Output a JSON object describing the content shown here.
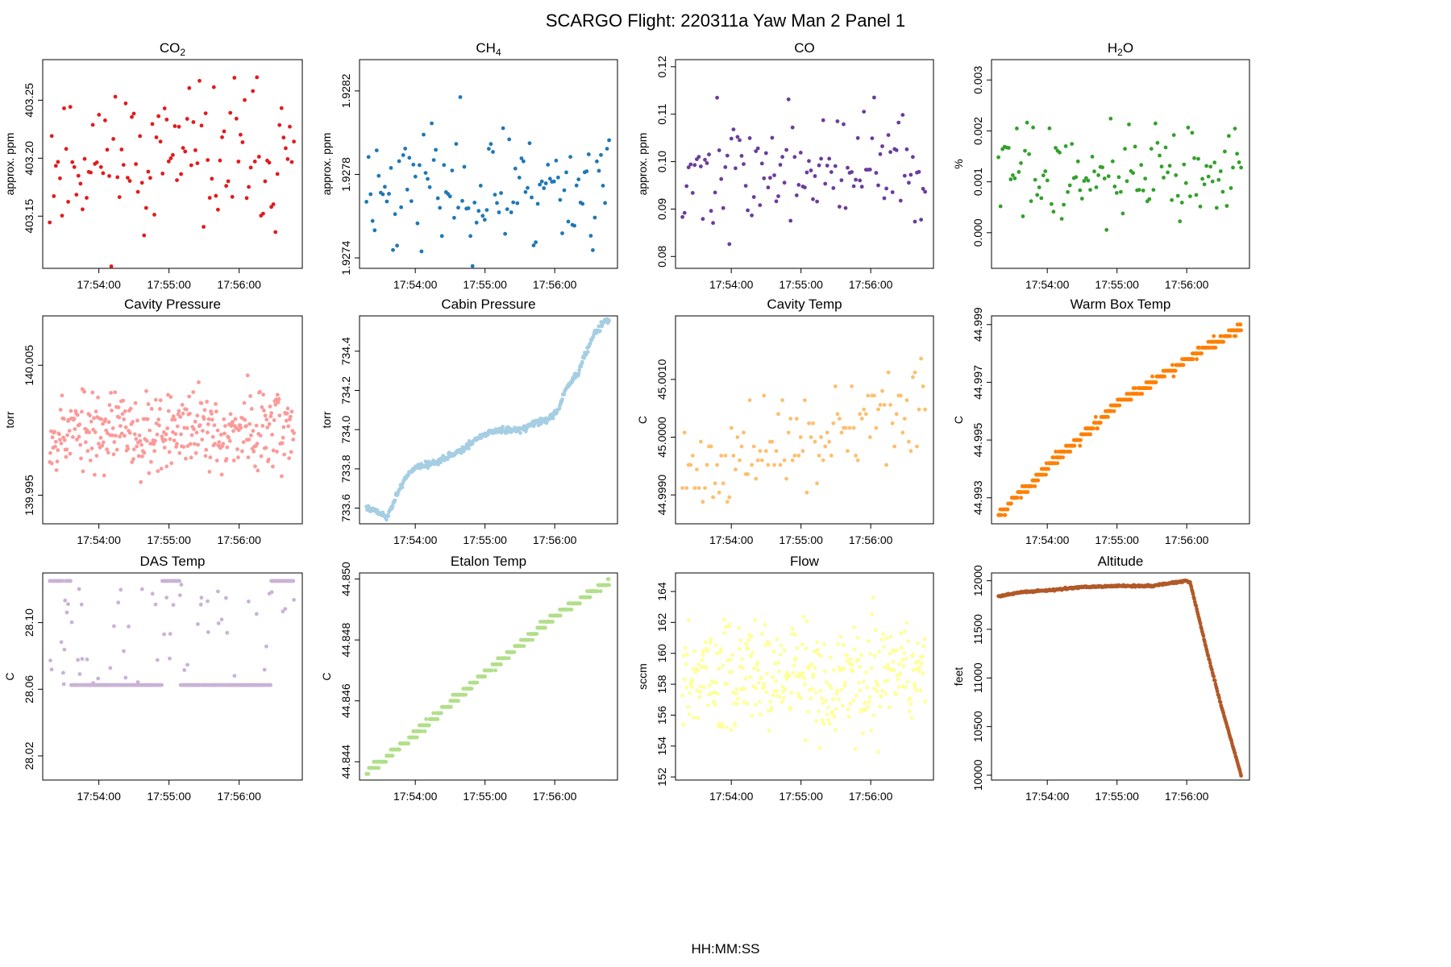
{
  "figure": {
    "title": "SCARGO Flight: 220311a  Yaw Man 2 Panel 1",
    "xlabel": "HH:MM:SS"
  },
  "chart_data": [
    {
      "type": "scatter",
      "title_base": "CO",
      "title_sub": "2",
      "ylabel": "approx. ppm",
      "color": "#e31a1c",
      "ylim": [
        403.105,
        403.285
      ],
      "yticks": [
        "403.15",
        "403.20",
        "403.25"
      ],
      "xlim": [
        53.2,
        56.9
      ],
      "xticks": [
        "17:54:00",
        "17:55:00",
        "17:56:00"
      ],
      "series": {
        "name": "CO2",
        "pattern": "noise",
        "n": 120,
        "mean": 403.2,
        "spread": 0.055,
        "seed": 11
      }
    },
    {
      "type": "scatter",
      "title_base": "CH",
      "title_sub": "4",
      "ylabel": "approx. ppm",
      "color": "#1f78b4",
      "ylim": [
        1.92735,
        1.92835
      ],
      "yticks": [
        "1.9274",
        "1.9278",
        "1.9282"
      ],
      "xlim": [
        53.2,
        56.9
      ],
      "xticks": [
        "17:54:00",
        "17:55:00",
        "17:56:00"
      ],
      "series": {
        "name": "CH4",
        "pattern": "noise",
        "n": 120,
        "mean": 1.92775,
        "spread": 0.00028,
        "seed": 23
      }
    },
    {
      "type": "scatter",
      "title_base": "CO",
      "title_sub": "",
      "ylabel": "approx. ppm",
      "color": "#6a3d9a",
      "ylim": [
        0.0775,
        0.1215
      ],
      "yticks": [
        "0.08",
        "0.09",
        "0.10",
        "0.11",
        "0.12"
      ],
      "xlim": [
        53.2,
        56.9
      ],
      "xticks": [
        "17:54:00",
        "17:55:00",
        "17:56:00"
      ],
      "series": {
        "name": "CO",
        "pattern": "noise",
        "n": 120,
        "mean": 0.098,
        "spread": 0.011,
        "seed": 37
      }
    },
    {
      "type": "scatter",
      "title_base": "H",
      "title_sub": "2",
      "title_tail": "O",
      "ylabel": "%",
      "color": "#33a02c",
      "ylim": [
        -0.0007,
        0.0034
      ],
      "yticks": [
        "0.000",
        "0.001",
        "0.002",
        "0.003"
      ],
      "xlim": [
        53.2,
        56.9
      ],
      "xticks": [
        "17:54:00",
        "17:55:00",
        "17:56:00"
      ],
      "series": {
        "name": "H2O",
        "pattern": "noise",
        "n": 120,
        "mean": 0.0012,
        "spread": 0.0009,
        "seed": 41
      }
    },
    {
      "type": "scatter",
      "title_base": "Cavity Pressure",
      "title_sub": "",
      "ylabel": "torr",
      "color": "#fb9a99",
      "ylim": [
        139.9928,
        140.0088
      ],
      "yticks": [
        "139.995",
        "140.005"
      ],
      "xlim": [
        53.2,
        56.9
      ],
      "xticks": [
        "17:54:00",
        "17:55:00",
        "17:56:00"
      ],
      "series": {
        "name": "Cavity Pressure",
        "pattern": "noise",
        "n": 360,
        "mean": 140.0,
        "spread": 0.0028,
        "seed": 53
      }
    },
    {
      "type": "scatter",
      "title_base": "Cabin Pressure",
      "title_sub": "",
      "ylabel": "torr",
      "color": "#a6cee3",
      "ylim": [
        733.52,
        734.58
      ],
      "yticks": [
        "733.6",
        "733.8",
        "734.0",
        "734.2",
        "734.4"
      ],
      "xlim": [
        53.2,
        56.9
      ],
      "xticks": [
        "17:54:00",
        "17:55:00",
        "17:56:00"
      ],
      "series": {
        "name": "Cabin Pressure",
        "pattern": "path",
        "n": 400,
        "seed": 61,
        "noise": 0.008,
        "points": [
          [
            53.3,
            733.6
          ],
          [
            53.45,
            733.58
          ],
          [
            53.6,
            733.55
          ],
          [
            53.75,
            733.68
          ],
          [
            53.9,
            733.78
          ],
          [
            54.1,
            733.82
          ],
          [
            54.3,
            733.83
          ],
          [
            54.5,
            733.87
          ],
          [
            54.7,
            733.9
          ],
          [
            54.9,
            733.96
          ],
          [
            55.1,
            733.99
          ],
          [
            55.3,
            734.0
          ],
          [
            55.5,
            734.0
          ],
          [
            55.7,
            734.03
          ],
          [
            55.9,
            734.05
          ],
          [
            56.05,
            734.1
          ],
          [
            56.15,
            734.2
          ],
          [
            56.35,
            734.3
          ],
          [
            56.55,
            734.48
          ],
          [
            56.75,
            734.56
          ]
        ]
      }
    },
    {
      "type": "scatter",
      "title_base": "Cavity Temp",
      "title_sub": "",
      "ylabel": "C",
      "color": "#fdbf6f",
      "ylim": [
        44.9985,
        45.0021
      ],
      "yticks": [
        "44.9990",
        "45.0000",
        "45.0010"
      ],
      "xlim": [
        53.2,
        56.9
      ],
      "xticks": [
        "17:54:00",
        "17:55:00",
        "17:56:00"
      ],
      "series": {
        "name": "Cavity Temp",
        "pattern": "noise",
        "n": 120,
        "mean": 44.99995,
        "spread": 0.0007,
        "seed": 71,
        "trend": 0.0012,
        "step": 8e-05
      }
    },
    {
      "type": "scatter",
      "title_base": "Warm Box Temp",
      "title_sub": "",
      "ylabel": "C",
      "color": "#ff7f00",
      "ylim": [
        44.9921,
        44.9993
      ],
      "yticks": [
        "44.993",
        "44.995",
        "44.997",
        "44.999"
      ],
      "xlim": [
        53.2,
        56.9
      ],
      "xticks": [
        "17:54:00",
        "17:55:00",
        "17:56:00"
      ],
      "series": {
        "name": "Warm Box Temp",
        "pattern": "path",
        "n": 400,
        "seed": 83,
        "noise": 8e-05,
        "step": 0.0002,
        "points": [
          [
            53.3,
            44.9924
          ],
          [
            54.0,
            44.9941
          ],
          [
            55.0,
            44.9962
          ],
          [
            56.0,
            44.9978
          ],
          [
            56.75,
            44.9989
          ]
        ]
      }
    },
    {
      "type": "scatter",
      "title_base": "DAS Temp",
      "title_sub": "",
      "ylabel": "C",
      "color": "#cab2d6",
      "ylim": [
        28.0055,
        28.1298
      ],
      "yticks": [
        "28.02",
        "28.06",
        "28.10"
      ],
      "xlim": [
        53.2,
        56.9
      ],
      "xticks": [
        "17:54:00",
        "17:55:00",
        "17:56:00"
      ],
      "series": {
        "name": "DAS Temp",
        "pattern": "bilevel",
        "n": 400,
        "seed": 97,
        "high": 28.125,
        "low": 28.0625,
        "lowspans": [
          [
            53.6,
            54.9
          ],
          [
            55.15,
            56.45
          ]
        ]
      }
    },
    {
      "type": "scatter",
      "title_base": "Etalon Temp",
      "title_sub": "",
      "ylabel": "C",
      "color": "#b2df8a",
      "ylim": [
        44.8434,
        44.8502
      ],
      "yticks": [
        "44.844",
        "44.846",
        "44.848",
        "44.850"
      ],
      "xlim": [
        53.2,
        56.9
      ],
      "xticks": [
        "17:54:00",
        "17:55:00",
        "17:56:00"
      ],
      "series": {
        "name": "Etalon Temp",
        "pattern": "path",
        "n": 400,
        "seed": 103,
        "noise": 5e-05,
        "step": 0.0002,
        "points": [
          [
            53.3,
            44.8436
          ],
          [
            54.0,
            44.8449
          ],
          [
            55.0,
            44.8469
          ],
          [
            56.0,
            44.8488
          ],
          [
            56.75,
            44.8499
          ]
        ]
      }
    },
    {
      "type": "scatter",
      "title_base": "Flow",
      "title_sub": "",
      "ylabel": "sccm",
      "color": "#ffff99",
      "ylim": [
        151.8,
        165.2
      ],
      "yticks": [
        "152",
        "154",
        "156",
        "158",
        "160",
        "162",
        "164"
      ],
      "xlim": [
        53.2,
        56.9
      ],
      "xticks": [
        "17:54:00",
        "17:55:00",
        "17:56:00"
      ],
      "series": {
        "name": "Flow",
        "pattern": "noise",
        "n": 360,
        "mean": 158.5,
        "spread": 3.2,
        "seed": 109
      }
    },
    {
      "type": "scatter",
      "title_base": "Altitude",
      "title_sub": "",
      "ylabel": "feet",
      "color": "#b15928",
      "ylim": [
        9950,
        12080
      ],
      "yticks": [
        "10000",
        "10500",
        "11000",
        "11500",
        "12000"
      ],
      "xlim": [
        53.2,
        56.9
      ],
      "xticks": [
        "17:54:00",
        "17:55:00",
        "17:56:00"
      ],
      "series": {
        "name": "Altitude",
        "pattern": "path",
        "n": 400,
        "seed": 127,
        "noise": 4,
        "points": [
          [
            53.3,
            11840
          ],
          [
            53.6,
            11880
          ],
          [
            54.0,
            11900
          ],
          [
            54.5,
            11935
          ],
          [
            55.0,
            11945
          ],
          [
            55.5,
            11945
          ],
          [
            56.0,
            12000
          ],
          [
            56.05,
            11980
          ],
          [
            56.3,
            11250
          ],
          [
            56.5,
            10700
          ],
          [
            56.78,
            10000
          ]
        ]
      }
    }
  ]
}
